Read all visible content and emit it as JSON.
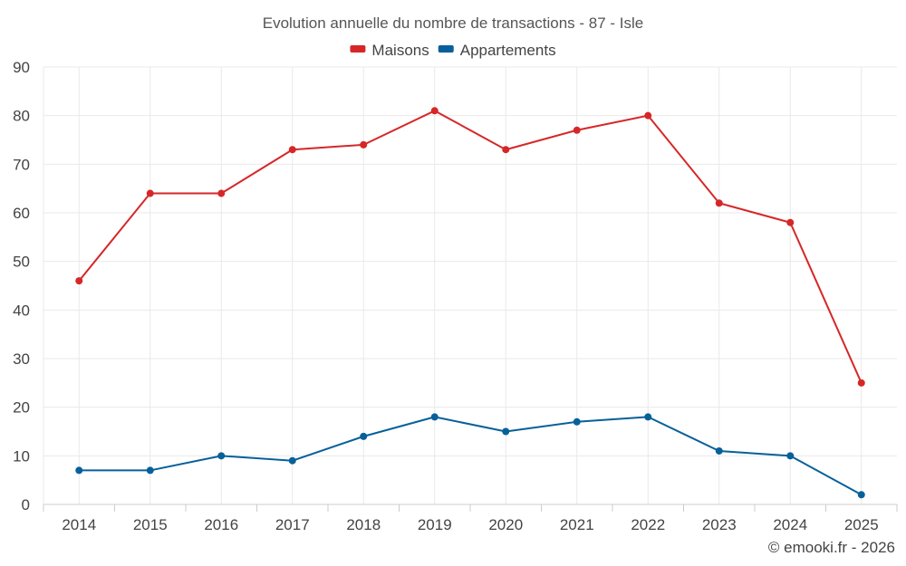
{
  "chart_data": {
    "type": "line",
    "title": "Evolution annuelle du nombre de transactions - 87 - Isle",
    "xlabel": "",
    "ylabel": "",
    "categories": [
      "2014",
      "2015",
      "2016",
      "2017",
      "2018",
      "2019",
      "2020",
      "2021",
      "2022",
      "2023",
      "2024",
      "2025"
    ],
    "ylim": [
      0,
      90
    ],
    "yticks": [
      0,
      10,
      20,
      30,
      40,
      50,
      60,
      70,
      80,
      90
    ],
    "grid": true,
    "legend_position": "top-center",
    "series": [
      {
        "name": "Maisons",
        "color": "#d62728",
        "values": [
          46,
          64,
          64,
          73,
          74,
          81,
          73,
          77,
          80,
          62,
          58,
          25
        ]
      },
      {
        "name": "Appartements",
        "color": "#07609a",
        "values": [
          7,
          7,
          10,
          9,
          14,
          18,
          15,
          17,
          18,
          11,
          10,
          2
        ]
      }
    ]
  },
  "credit": "© emooki.fr - 2026"
}
